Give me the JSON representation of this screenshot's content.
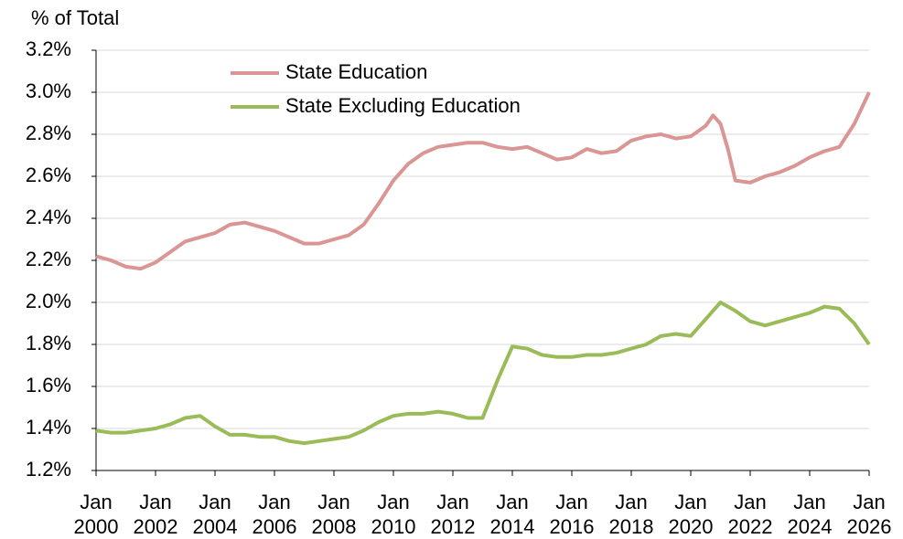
{
  "chart_data": {
    "type": "line",
    "y_label": "% of Total",
    "x": [
      "2000-01",
      "2000-07",
      "2001-01",
      "2001-07",
      "2002-01",
      "2002-07",
      "2003-01",
      "2003-07",
      "2004-01",
      "2004-07",
      "2005-01",
      "2005-07",
      "2006-01",
      "2006-07",
      "2007-01",
      "2007-07",
      "2008-01",
      "2008-07",
      "2009-01",
      "2009-07",
      "2010-01",
      "2010-07",
      "2011-01",
      "2011-07",
      "2012-01",
      "2012-07",
      "2013-01",
      "2013-07",
      "2014-01",
      "2014-07",
      "2015-01",
      "2015-07",
      "2016-01",
      "2016-07",
      "2017-01",
      "2017-07",
      "2018-01",
      "2018-07",
      "2019-01",
      "2019-07",
      "2020-01",
      "2020-07",
      "2020-10",
      "2021-01",
      "2021-04",
      "2021-07",
      "2022-01",
      "2022-07",
      "2023-01",
      "2023-07",
      "2024-01",
      "2024-07",
      "2025-01",
      "2025-07",
      "2026-01"
    ],
    "series": [
      {
        "name": "State Education",
        "color": "#d99694",
        "values": [
          2.22,
          2.2,
          2.17,
          2.16,
          2.19,
          2.24,
          2.29,
          2.31,
          2.33,
          2.37,
          2.38,
          2.36,
          2.34,
          2.31,
          2.28,
          2.28,
          2.3,
          2.32,
          2.37,
          2.47,
          2.58,
          2.66,
          2.71,
          2.74,
          2.75,
          2.76,
          2.76,
          2.74,
          2.73,
          2.74,
          2.71,
          2.68,
          2.69,
          2.73,
          2.71,
          2.72,
          2.77,
          2.79,
          2.8,
          2.78,
          2.79,
          2.84,
          2.89,
          2.85,
          2.73,
          2.58,
          2.57,
          2.6,
          2.62,
          2.65,
          2.69,
          2.72,
          2.74,
          2.85,
          3.0
        ]
      },
      {
        "name": "State Excluding Education",
        "color": "#9bbb59",
        "values": [
          1.39,
          1.38,
          1.38,
          1.39,
          1.4,
          1.42,
          1.45,
          1.46,
          1.41,
          1.37,
          1.37,
          1.36,
          1.36,
          1.34,
          1.33,
          1.34,
          1.35,
          1.36,
          1.39,
          1.43,
          1.46,
          1.47,
          1.47,
          1.48,
          1.47,
          1.45,
          1.45,
          1.63,
          1.79,
          1.78,
          1.75,
          1.74,
          1.74,
          1.75,
          1.75,
          1.76,
          1.78,
          1.8,
          1.84,
          1.85,
          1.84,
          1.92,
          1.96,
          2.0,
          1.98,
          1.96,
          1.91,
          1.89,
          1.91,
          1.93,
          1.95,
          1.98,
          1.97,
          1.9,
          1.8
        ]
      }
    ],
    "xlim": [
      "2000-01",
      "2026-01"
    ],
    "xticks": [
      {
        "value": "2000-01",
        "label": "Jan 2000"
      },
      {
        "value": "2002-01",
        "label": "Jan 2002"
      },
      {
        "value": "2004-01",
        "label": "Jan 2004"
      },
      {
        "value": "2006-01",
        "label": "Jan 2006"
      },
      {
        "value": "2008-01",
        "label": "Jan 2008"
      },
      {
        "value": "2010-01",
        "label": "Jan 2010"
      },
      {
        "value": "2012-01",
        "label": "Jan 2012"
      },
      {
        "value": "2014-01",
        "label": "Jan 2014"
      },
      {
        "value": "2016-01",
        "label": "Jan 2016"
      },
      {
        "value": "2018-01",
        "label": "Jan 2018"
      },
      {
        "value": "2020-01",
        "label": "Jan 2020"
      },
      {
        "value": "2022-01",
        "label": "Jan 2022"
      },
      {
        "value": "2024-01",
        "label": "Jan 2024"
      },
      {
        "value": "2026-01",
        "label": "Jan 2026"
      }
    ],
    "ylim": [
      1.2,
      3.2
    ],
    "yticks": [
      {
        "value": 1.2,
        "label": "1.2%"
      },
      {
        "value": 1.4,
        "label": "1.4%"
      },
      {
        "value": 1.6,
        "label": "1.6%"
      },
      {
        "value": 1.8,
        "label": "1.8%"
      },
      {
        "value": 2.0,
        "label": "2.0%"
      },
      {
        "value": 2.2,
        "label": "2.2%"
      },
      {
        "value": 2.4,
        "label": "2.4%"
      },
      {
        "value": 2.6,
        "label": "2.6%"
      },
      {
        "value": 2.8,
        "label": "2.8%"
      },
      {
        "value": 3.0,
        "label": "3.0%"
      },
      {
        "value": 3.2,
        "label": "3.2%"
      }
    ],
    "grid": true,
    "legend": "upper left"
  }
}
